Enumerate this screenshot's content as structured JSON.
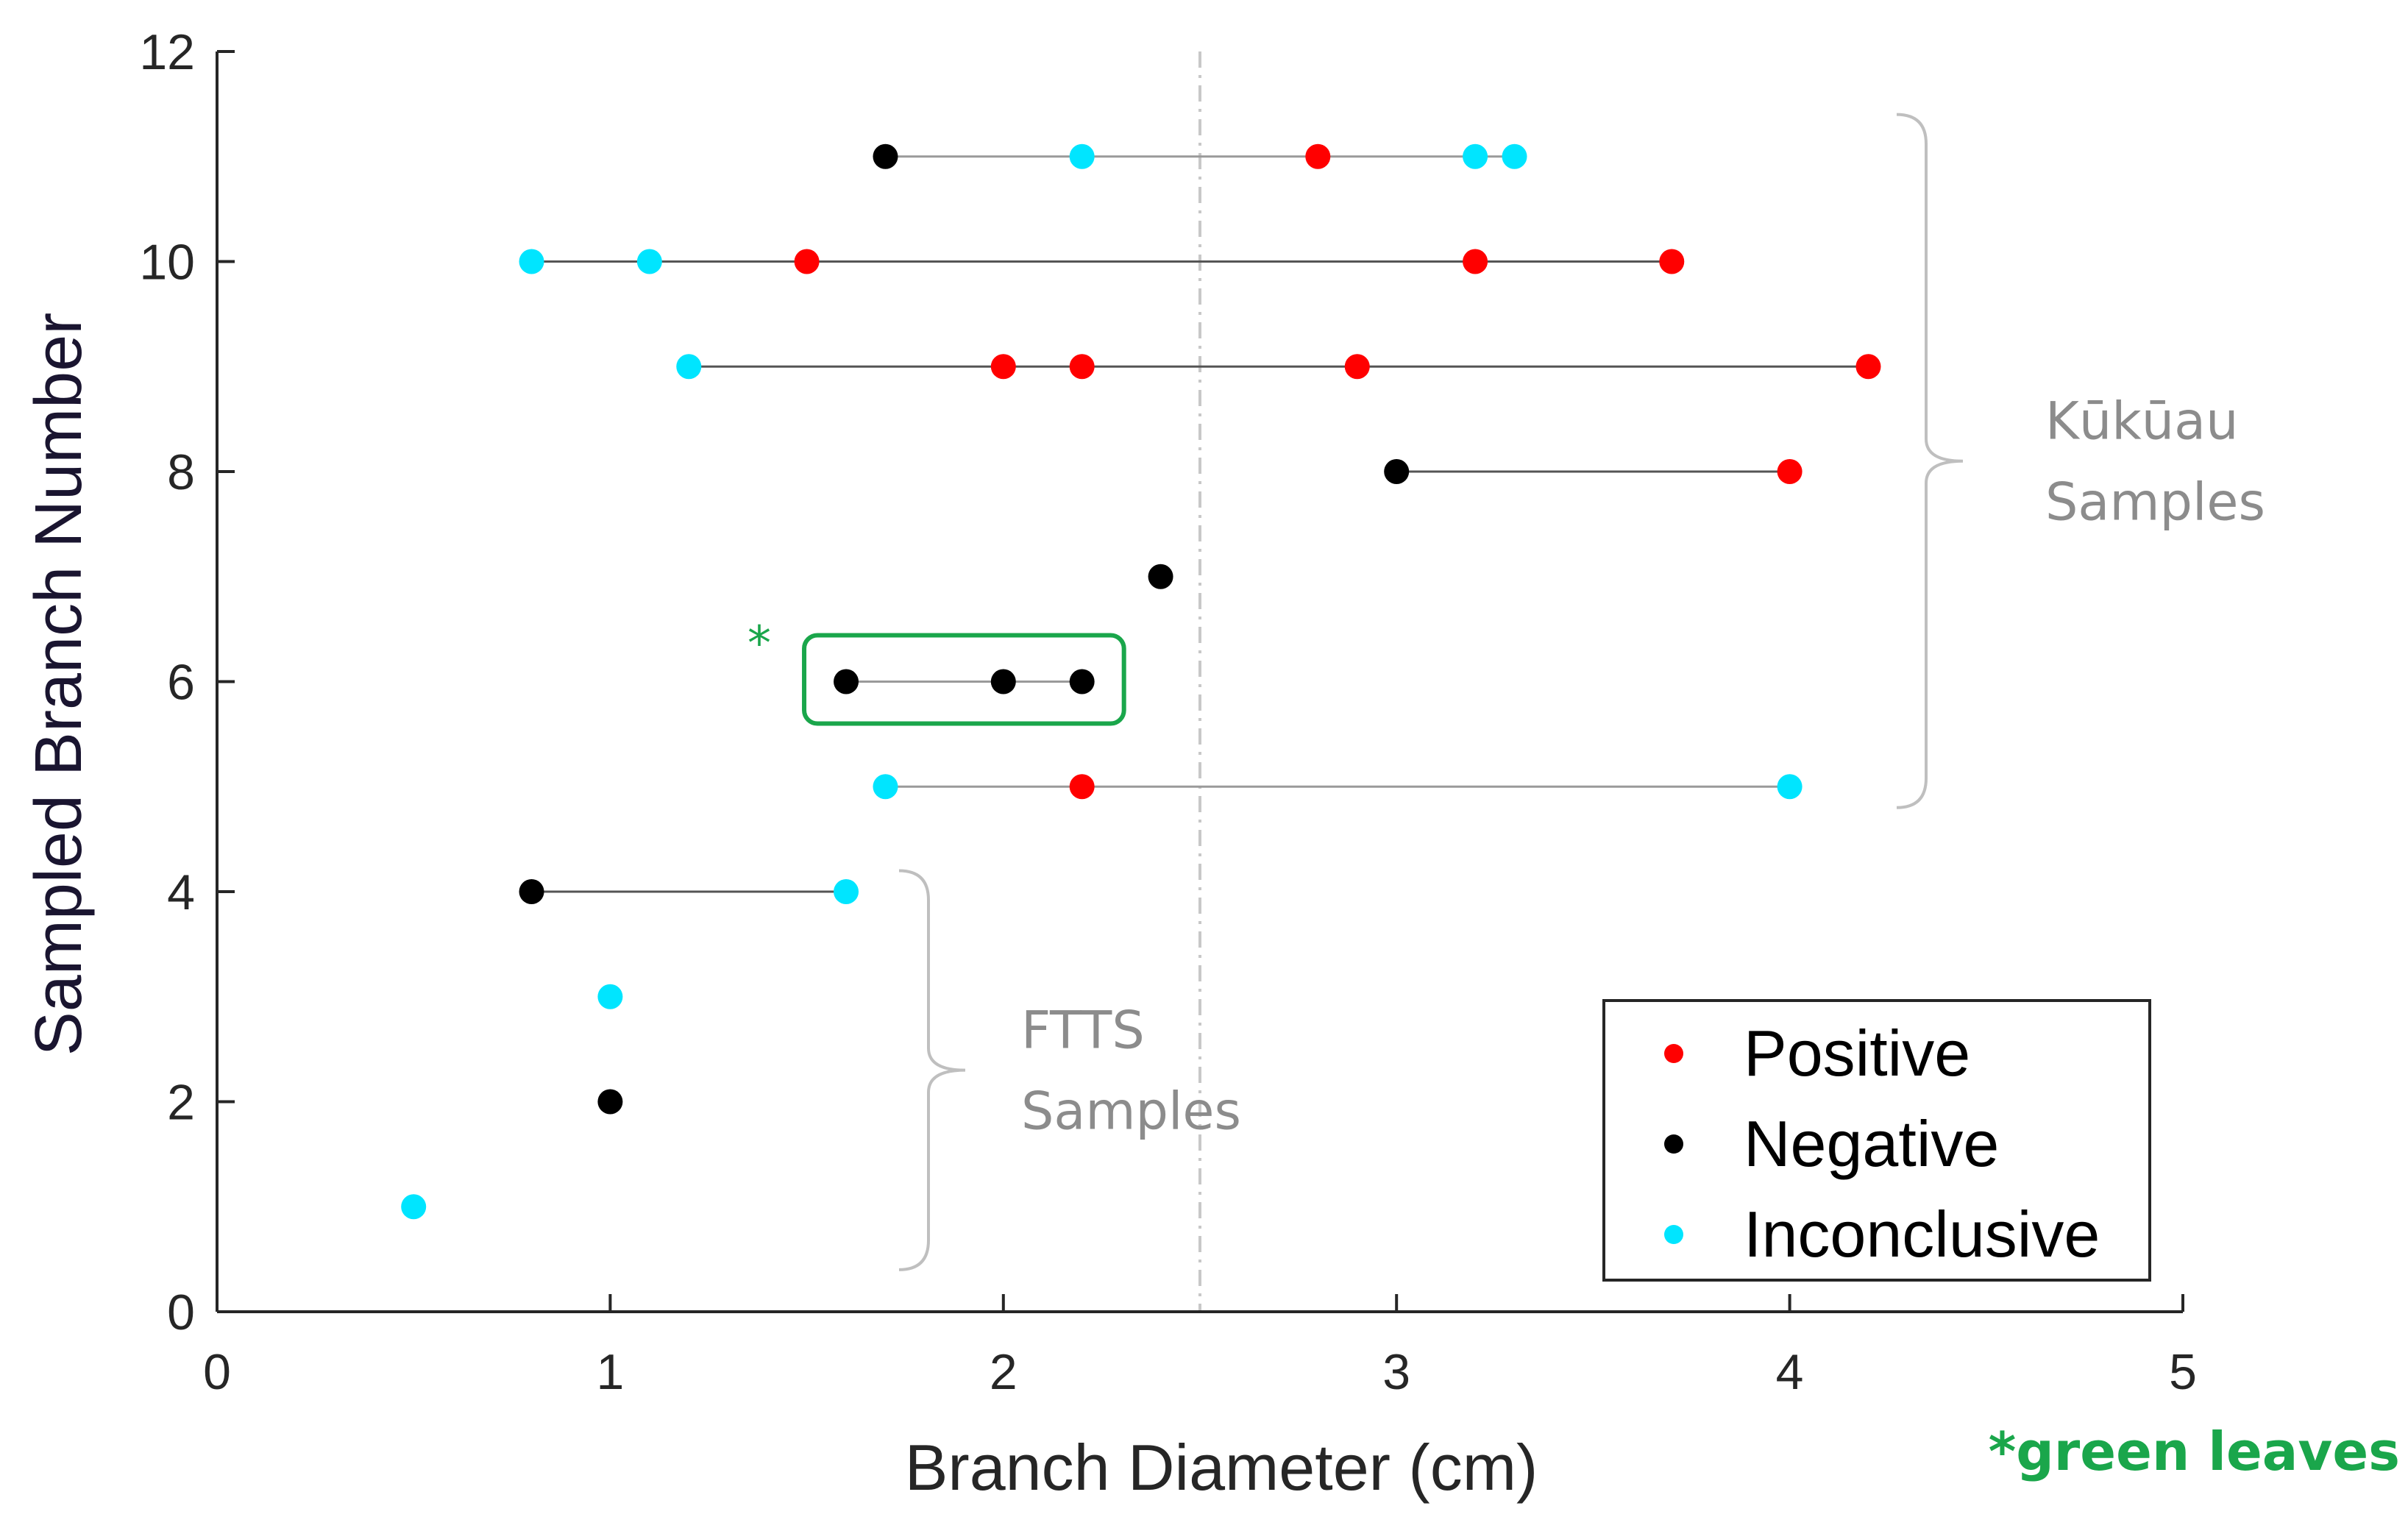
{
  "chart_data": {
    "type": "scatter",
    "xlabel": "Branch Diameter (cm)",
    "ylabel": "Sampled Branch Number",
    "xlim": [
      0,
      5
    ],
    "ylim": [
      0,
      12
    ],
    "x_ticks": [
      "0",
      "1",
      "2",
      "3",
      "4",
      "5"
    ],
    "y_ticks": [
      "0",
      "2",
      "4",
      "6",
      "8",
      "10",
      "12"
    ],
    "reference_line_x": 2.5,
    "legend": [
      {
        "label": "Positive",
        "color": "#ff0000"
      },
      {
        "label": "Negative",
        "color": "#000000"
      },
      {
        "label": "Inconclusive",
        "color": "#00e5ff"
      }
    ],
    "branches": [
      {
        "branch": 1,
        "points": [
          {
            "x": 0.5,
            "result": "Inconclusive"
          }
        ]
      },
      {
        "branch": 2,
        "points": [
          {
            "x": 1.0,
            "result": "Negative"
          }
        ]
      },
      {
        "branch": 3,
        "points": [
          {
            "x": 1.0,
            "result": "Inconclusive"
          }
        ]
      },
      {
        "branch": 4,
        "points": [
          {
            "x": 0.8,
            "result": "Negative"
          },
          {
            "x": 1.6,
            "result": "Inconclusive"
          }
        ]
      },
      {
        "branch": 5,
        "points": [
          {
            "x": 1.7,
            "result": "Inconclusive"
          },
          {
            "x": 2.2,
            "result": "Positive"
          },
          {
            "x": 4.0,
            "result": "Inconclusive"
          }
        ]
      },
      {
        "branch": 6,
        "highlighted": true,
        "points": [
          {
            "x": 1.6,
            "result": "Negative"
          },
          {
            "x": 2.0,
            "result": "Negative"
          },
          {
            "x": 2.2,
            "result": "Negative"
          }
        ]
      },
      {
        "branch": 7,
        "points": [
          {
            "x": 2.4,
            "result": "Negative"
          }
        ]
      },
      {
        "branch": 8,
        "points": [
          {
            "x": 3.0,
            "result": "Negative"
          },
          {
            "x": 4.0,
            "result": "Positive"
          }
        ]
      },
      {
        "branch": 9,
        "points": [
          {
            "x": 1.2,
            "result": "Inconclusive"
          },
          {
            "x": 2.0,
            "result": "Positive"
          },
          {
            "x": 2.2,
            "result": "Positive"
          },
          {
            "x": 2.9,
            "result": "Positive"
          },
          {
            "x": 4.2,
            "result": "Positive"
          }
        ]
      },
      {
        "branch": 10,
        "points": [
          {
            "x": 0.8,
            "result": "Inconclusive"
          },
          {
            "x": 1.1,
            "result": "Inconclusive"
          },
          {
            "x": 1.5,
            "result": "Positive"
          },
          {
            "x": 3.2,
            "result": "Positive"
          },
          {
            "x": 3.7,
            "result": "Positive"
          }
        ]
      },
      {
        "branch": 11,
        "points": [
          {
            "x": 1.7,
            "result": "Negative"
          },
          {
            "x": 2.2,
            "result": "Inconclusive"
          },
          {
            "x": 2.8,
            "result": "Positive"
          },
          {
            "x": 3.2,
            "result": "Inconclusive"
          },
          {
            "x": 3.3,
            "result": "Inconclusive"
          }
        ]
      }
    ],
    "groups": [
      {
        "name": "ftts",
        "line1": "FTTS",
        "line2": "Samples",
        "from_branch": 0.4,
        "to_branch": 4.2
      },
      {
        "name": "kukuau",
        "line1": "Kūkūau",
        "line2": "Samples",
        "from_branch": 4.8,
        "to_branch": 11.4
      }
    ],
    "highlight_marker": "*",
    "footnote": "*green leaves"
  }
}
